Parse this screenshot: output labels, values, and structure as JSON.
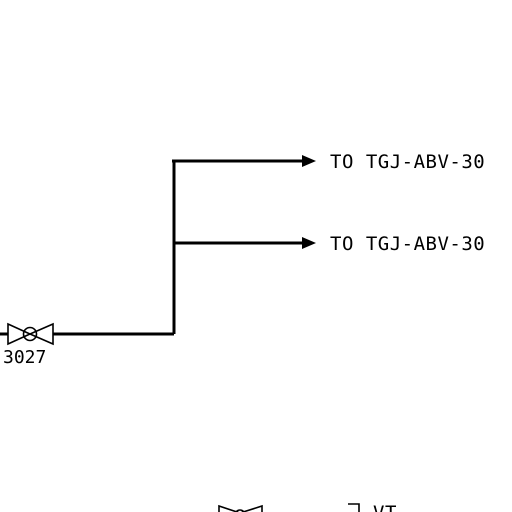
{
  "destinations": [
    {
      "label": "TO TGJ-ABV-30"
    },
    {
      "label": "TO TGJ-ABV-30"
    }
  ],
  "valve": {
    "tag": "3027",
    "icon": "gate-valve-icon"
  },
  "partial_label": "VT",
  "colors": {
    "line": "#000000",
    "background": "#ffffff"
  }
}
